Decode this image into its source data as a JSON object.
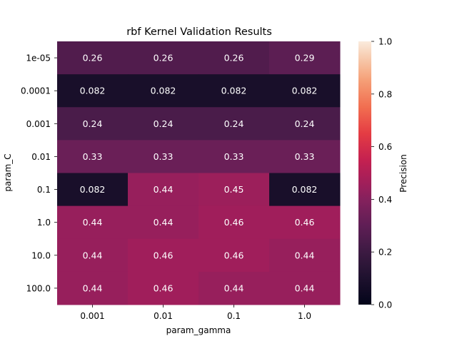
{
  "chart_data": {
    "type": "heatmap",
    "title": "rbf Kernel Validation Results",
    "xlabel": "param_gamma",
    "ylabel": "param_C",
    "x_categories": [
      "0.001",
      "0.01",
      "0.1",
      "1.0"
    ],
    "y_categories": [
      "1e-05",
      "0.0001",
      "0.001",
      "0.01",
      "0.1",
      "1.0",
      "10.0",
      "100.0"
    ],
    "values": [
      [
        0.26,
        0.26,
        0.26,
        0.29
      ],
      [
        0.082,
        0.082,
        0.082,
        0.082
      ],
      [
        0.24,
        0.24,
        0.24,
        0.24
      ],
      [
        0.33,
        0.33,
        0.33,
        0.33
      ],
      [
        0.082,
        0.44,
        0.45,
        0.082
      ],
      [
        0.44,
        0.44,
        0.46,
        0.46
      ],
      [
        0.44,
        0.46,
        0.46,
        0.44
      ],
      [
        0.44,
        0.46,
        0.44,
        0.44
      ]
    ],
    "value_labels": [
      [
        "0.26",
        "0.26",
        "0.26",
        "0.29"
      ],
      [
        "0.082",
        "0.082",
        "0.082",
        "0.082"
      ],
      [
        "0.24",
        "0.24",
        "0.24",
        "0.24"
      ],
      [
        "0.33",
        "0.33",
        "0.33",
        "0.33"
      ],
      [
        "0.082",
        "0.44",
        "0.45",
        "0.082"
      ],
      [
        "0.44",
        "0.44",
        "0.46",
        "0.46"
      ],
      [
        "0.44",
        "0.46",
        "0.46",
        "0.44"
      ],
      [
        "0.44",
        "0.46",
        "0.44",
        "0.44"
      ]
    ],
    "colorbar": {
      "label": "Precision",
      "range": [
        0.0,
        1.0
      ],
      "ticks": [
        "0.0",
        "0.2",
        "0.4",
        "0.6",
        "0.8",
        "1.0"
      ],
      "colormap": "rocket"
    },
    "annotation_color": "#ffffff",
    "grid": false
  }
}
